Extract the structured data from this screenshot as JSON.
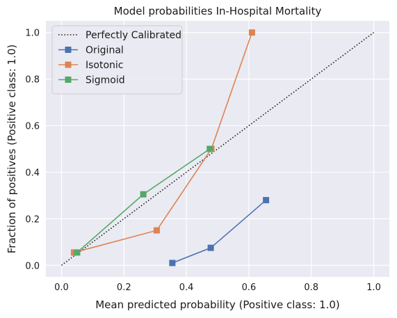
{
  "chart_data": {
    "type": "line",
    "title": "Model probabilities In-Hospital Mortality",
    "xlabel": "Mean predicted probability (Positive class: 1.0)",
    "ylabel": "Fraction of positives (Positive class: 1.0)",
    "xlim": [
      -0.05,
      1.05
    ],
    "ylim": [
      -0.05,
      1.05
    ],
    "x_ticks": [
      0.0,
      0.2,
      0.4,
      0.6,
      0.8,
      1.0
    ],
    "y_ticks": [
      0.0,
      0.2,
      0.4,
      0.6,
      0.8,
      1.0
    ],
    "x_tick_labels": [
      "0.0",
      "0.2",
      "0.4",
      "0.6",
      "0.8",
      "1.0"
    ],
    "y_tick_labels": [
      "0.0",
      "0.2",
      "0.4",
      "0.6",
      "0.8",
      "1.0"
    ],
    "grid": true,
    "legend_position": "top-left",
    "background": "#eaeaf2",
    "reference": {
      "name": "Perfectly Calibrated",
      "style": "dotted",
      "color": "#222222",
      "x": [
        0.0,
        1.0
      ],
      "y": [
        0.0,
        1.0
      ]
    },
    "series": [
      {
        "name": "Original",
        "color": "#4c72b0",
        "marker": "square",
        "x": [
          0.355,
          0.478,
          0.655
        ],
        "y": [
          0.01,
          0.075,
          0.28
        ]
      },
      {
        "name": "Isotonic",
        "color": "#dd8452",
        "marker": "square",
        "x": [
          0.04,
          0.305,
          0.48,
          0.61
        ],
        "y": [
          0.055,
          0.15,
          0.5,
          1.0
        ]
      },
      {
        "name": "Sigmoid",
        "color": "#55a868",
        "marker": "square",
        "x": [
          0.05,
          0.262,
          0.475
        ],
        "y": [
          0.055,
          0.305,
          0.5
        ]
      }
    ]
  }
}
